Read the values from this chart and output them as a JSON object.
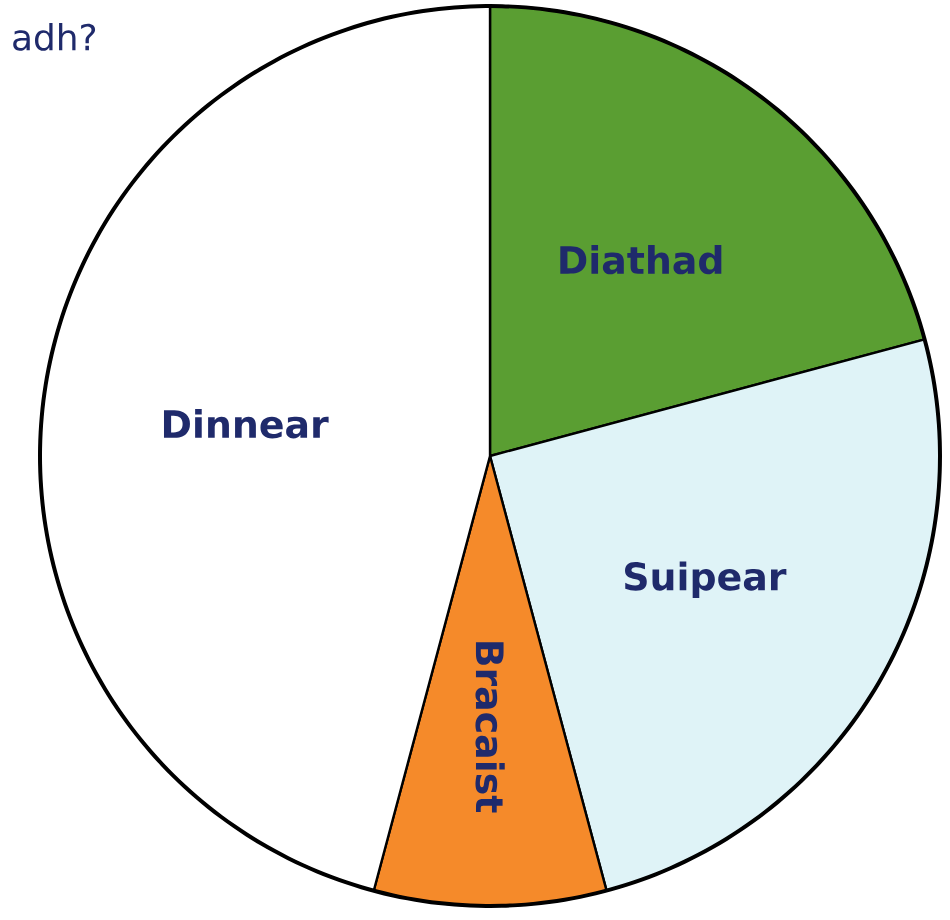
{
  "chart_data": {
    "type": "pie",
    "title": "adh?",
    "categories": [
      "Diathad",
      "Suipear",
      "Bracaist",
      "Dinnear"
    ],
    "values": [
      20.83,
      25,
      8.33,
      45.84
    ],
    "colors": [
      "#5a9e32",
      "#dff3f7",
      "#f58a2a",
      "#ffffff"
    ]
  }
}
